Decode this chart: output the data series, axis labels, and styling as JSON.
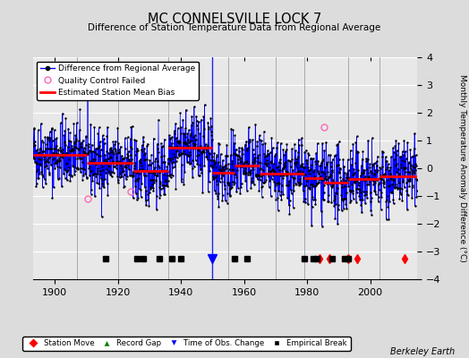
{
  "title": "MC CONNELSVILLE LOCK 7",
  "subtitle": "Difference of Station Temperature Data from Regional Average",
  "ylabel": "Monthly Temperature Anomaly Difference (°C)",
  "xlim": [
    1893,
    2015
  ],
  "ylim": [
    -4,
    4
  ],
  "yticks": [
    -4,
    -3,
    -2,
    -1,
    0,
    1,
    2,
    3,
    4
  ],
  "xticks": [
    1900,
    1920,
    1940,
    1960,
    1980,
    2000
  ],
  "background_color": "#dcdcdc",
  "plot_bg_color": "#e8e8e8",
  "grid_color": "#ffffff",
  "seed": 42,
  "station_moves": [
    1984,
    1987,
    1993,
    1996,
    2011
  ],
  "time_obs_changes": [
    1950
  ],
  "record_gaps": [],
  "empirical_breaks": [
    1916,
    1926,
    1928,
    1933,
    1937,
    1940,
    1957,
    1961,
    1979,
    1982,
    1983,
    1988,
    1992,
    1993
  ],
  "vertical_lines": [
    1907,
    1920,
    1936,
    1950,
    1955,
    1970,
    1979,
    1993,
    2003
  ],
  "bias_segments": [
    {
      "start": 1893,
      "end": 1910,
      "bias": 0.5
    },
    {
      "start": 1910,
      "end": 1925,
      "bias": 0.2
    },
    {
      "start": 1925,
      "end": 1936,
      "bias": -0.1
    },
    {
      "start": 1936,
      "end": 1950,
      "bias": 0.75
    },
    {
      "start": 1950,
      "end": 1957,
      "bias": -0.15
    },
    {
      "start": 1957,
      "end": 1965,
      "bias": 0.1
    },
    {
      "start": 1965,
      "end": 1979,
      "bias": -0.2
    },
    {
      "start": 1979,
      "end": 1985,
      "bias": -0.35
    },
    {
      "start": 1985,
      "end": 1993,
      "bias": -0.5
    },
    {
      "start": 1993,
      "end": 2003,
      "bias": -0.4
    },
    {
      "start": 2003,
      "end": 2015,
      "bias": -0.3
    }
  ],
  "qc_failed": [
    {
      "year": 1910.5,
      "value": -1.1
    },
    {
      "year": 1924.0,
      "value": -0.85
    },
    {
      "year": 1985.5,
      "value": 1.5
    }
  ],
  "figsize": [
    5.24,
    4.0
  ],
  "dpi": 100
}
